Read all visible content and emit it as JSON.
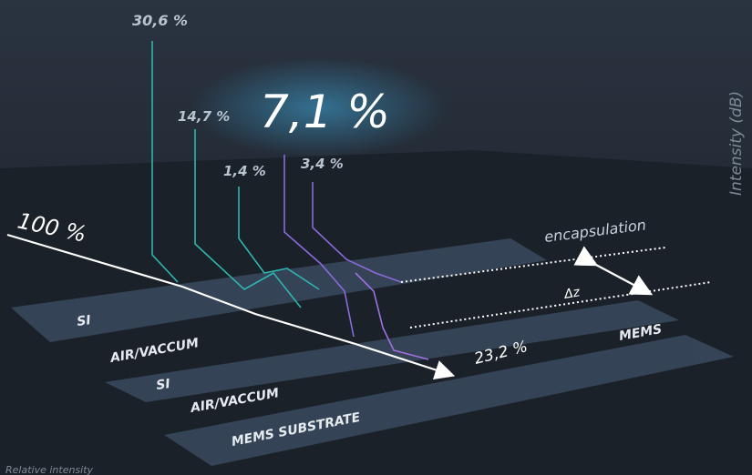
{
  "incident": {
    "label": "100 %"
  },
  "reflections": [
    {
      "label": "30,6 %"
    },
    {
      "label": "14,7 %"
    },
    {
      "label": "7,1 %"
    },
    {
      "label": "1,4 %"
    },
    {
      "label": "3,4 %"
    }
  ],
  "transmitted": {
    "label": "23,2 %"
  },
  "layers": [
    {
      "label": "SI"
    },
    {
      "label": "AIR/VACCUM"
    },
    {
      "label": "SI"
    },
    {
      "label": "AIR/VACCUM"
    },
    {
      "label": "MEMS SUBSTRATE"
    }
  ],
  "annotations": {
    "encapsulation": "encapsulation",
    "delta": "Δz",
    "mems": "MEMS"
  },
  "axis": {
    "y_label": "Intensity (dB)",
    "x_label": "Relative intensity"
  }
}
